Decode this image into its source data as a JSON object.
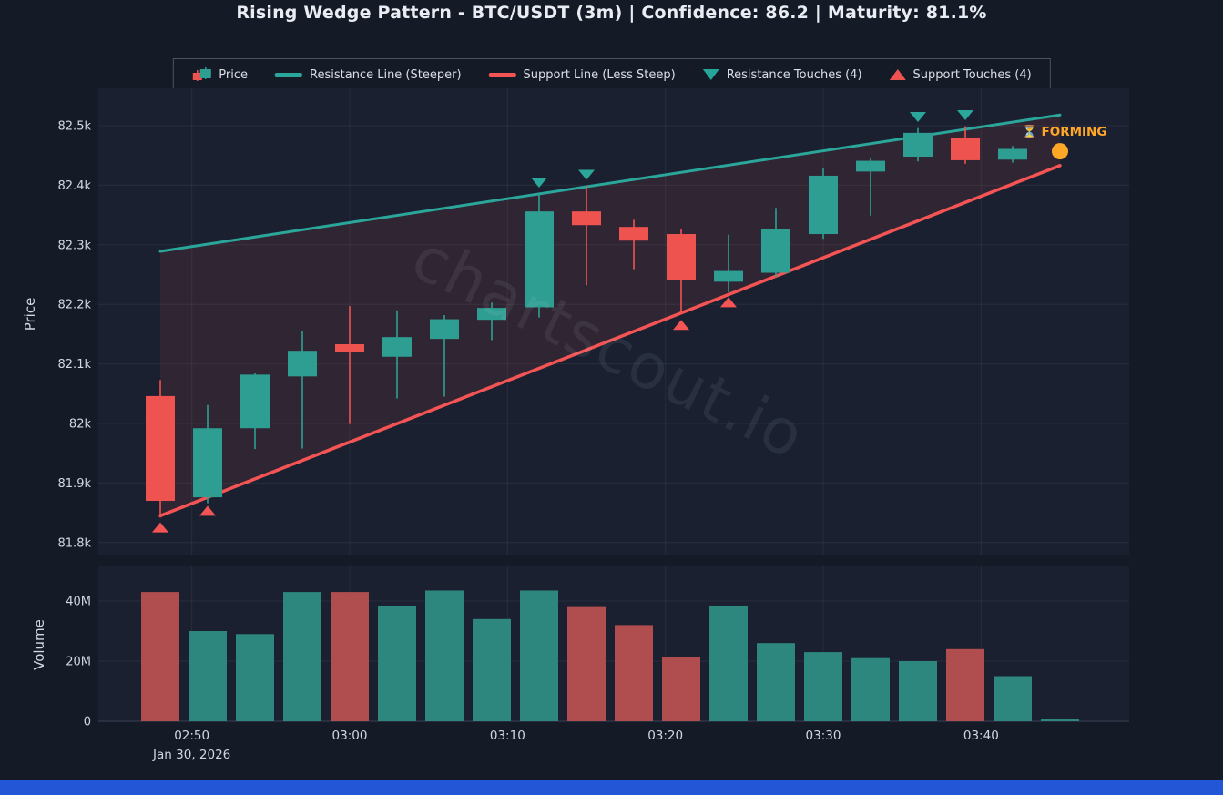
{
  "title": "Rising Wedge Pattern - BTC/USDT (3m) | Confidence: 86.2 | Maturity: 81.1%",
  "watermark": "chartscout.io",
  "status_label": "⏳ FORMING",
  "colors": {
    "background": "#151a27",
    "panel": "#1a202f",
    "grid": "rgba(210,220,240,0.07)",
    "zero_line": "#3a4154",
    "text": "#d3d7e0",
    "bullish": "#2f9e92",
    "bearish": "#ef5350",
    "resistance_line": "#2aa79a",
    "support_line": "#f55455",
    "wedge_fill": "rgba(244,90,90,0.10)",
    "volume_up": "#2d877e",
    "volume_down": "#b04e4f",
    "forming": "#ffa726",
    "bottom_strip": "#2256d7"
  },
  "legend": {
    "items": [
      {
        "label": "Price",
        "type": "candle"
      },
      {
        "label": "Resistance Line (Steeper)",
        "type": "line",
        "color": "#2aa79a"
      },
      {
        "label": "Support Line (Less Steep)",
        "type": "line",
        "color": "#f55455"
      },
      {
        "label": "Resistance Touches (4)",
        "type": "triangle-down",
        "color": "#2aa79a"
      },
      {
        "label": "Support Touches (4)",
        "type": "triangle-up",
        "color": "#ef5350"
      }
    ]
  },
  "axes": {
    "price_label": "Price",
    "volume_label": "Volume",
    "price_ticks": [
      "82.5k",
      "82.4k",
      "82.3k",
      "82.2k",
      "82.1k",
      "82k",
      "81.9k",
      "81.8k"
    ],
    "price_tick_values": [
      82.5,
      82.4,
      82.3,
      82.2,
      82.1,
      82.0,
      81.9,
      81.8
    ],
    "volume_ticks": [
      "40M",
      "20M",
      "0"
    ],
    "volume_tick_values": [
      40,
      20,
      0
    ],
    "x_ticks": [
      "02:50",
      "03:00",
      "03:10",
      "03:20",
      "03:30",
      "03:40"
    ],
    "date_label": "Jan 30, 2026"
  },
  "chart_data": [
    {
      "type": "candlestick",
      "name": "Price",
      "symbol": "BTC/USDT",
      "interval": "3m",
      "confidence": 86.2,
      "maturity_pct": 81.1,
      "ylabel": "Price",
      "ylim": [
        81.78,
        82.53
      ],
      "unit": "k USDT",
      "x": [
        "02:48",
        "02:51",
        "02:54",
        "02:57",
        "03:00",
        "03:03",
        "03:06",
        "03:09",
        "03:12",
        "03:15",
        "03:18",
        "03:21",
        "03:24",
        "03:27",
        "03:30",
        "03:33",
        "03:36",
        "03:39",
        "03:42"
      ],
      "open": [
        82.046,
        81.876,
        81.992,
        82.079,
        82.133,
        82.112,
        82.142,
        82.174,
        82.195,
        82.356,
        82.33,
        82.318,
        82.238,
        82.253,
        82.318,
        82.423,
        82.448,
        82.479,
        82.443
      ],
      "high": [
        82.073,
        82.031,
        82.084,
        82.155,
        82.197,
        82.19,
        82.182,
        82.203,
        82.386,
        82.399,
        82.342,
        82.327,
        82.317,
        82.362,
        82.428,
        82.446,
        82.496,
        82.499,
        82.466
      ],
      "low": [
        81.842,
        81.866,
        81.957,
        81.958,
        81.999,
        82.042,
        82.045,
        82.14,
        82.178,
        82.232,
        82.259,
        82.184,
        82.22,
        82.246,
        82.31,
        82.349,
        82.44,
        82.436,
        82.438
      ],
      "close": [
        81.87,
        81.992,
        82.082,
        82.122,
        82.12,
        82.145,
        82.175,
        82.194,
        82.356,
        82.333,
        82.307,
        82.241,
        82.256,
        82.327,
        82.416,
        82.441,
        82.488,
        82.442,
        82.461
      ],
      "resistance_line": {
        "x": [
          "02:48",
          "03:45"
        ],
        "y": [
          82.289,
          82.518
        ]
      },
      "support_line": {
        "x": [
          "02:48",
          "03:45"
        ],
        "y": [
          81.845,
          82.433
        ]
      },
      "resistance_touches": {
        "x": [
          "03:12",
          "03:15",
          "03:36",
          "03:39"
        ],
        "y": [
          82.39,
          82.403,
          82.5,
          82.503
        ]
      },
      "support_touches": {
        "x": [
          "02:48",
          "02:51",
          "03:21",
          "03:24"
        ],
        "y": [
          81.84,
          81.868,
          82.18,
          82.218
        ]
      },
      "current": {
        "x": "03:45",
        "y": 82.457,
        "status": "FORMING"
      }
    },
    {
      "type": "bar",
      "name": "Volume",
      "ylabel": "Volume",
      "ylim": [
        0,
        52
      ],
      "unit": "M",
      "x": [
        "02:48",
        "02:51",
        "02:54",
        "02:57",
        "03:00",
        "03:03",
        "03:06",
        "03:09",
        "03:12",
        "03:15",
        "03:18",
        "03:21",
        "03:24",
        "03:27",
        "03:30",
        "03:33",
        "03:36",
        "03:39",
        "03:42",
        "03:45"
      ],
      "values": [
        43,
        30,
        29,
        43,
        43,
        38.5,
        43.5,
        34,
        43.5,
        38,
        32,
        21.5,
        38.5,
        26,
        23,
        21,
        20,
        24,
        15,
        0.6
      ],
      "direction": [
        "down",
        "up",
        "up",
        "up",
        "down",
        "up",
        "up",
        "up",
        "up",
        "down",
        "down",
        "down",
        "up",
        "up",
        "up",
        "up",
        "up",
        "down",
        "up",
        "up"
      ]
    }
  ]
}
